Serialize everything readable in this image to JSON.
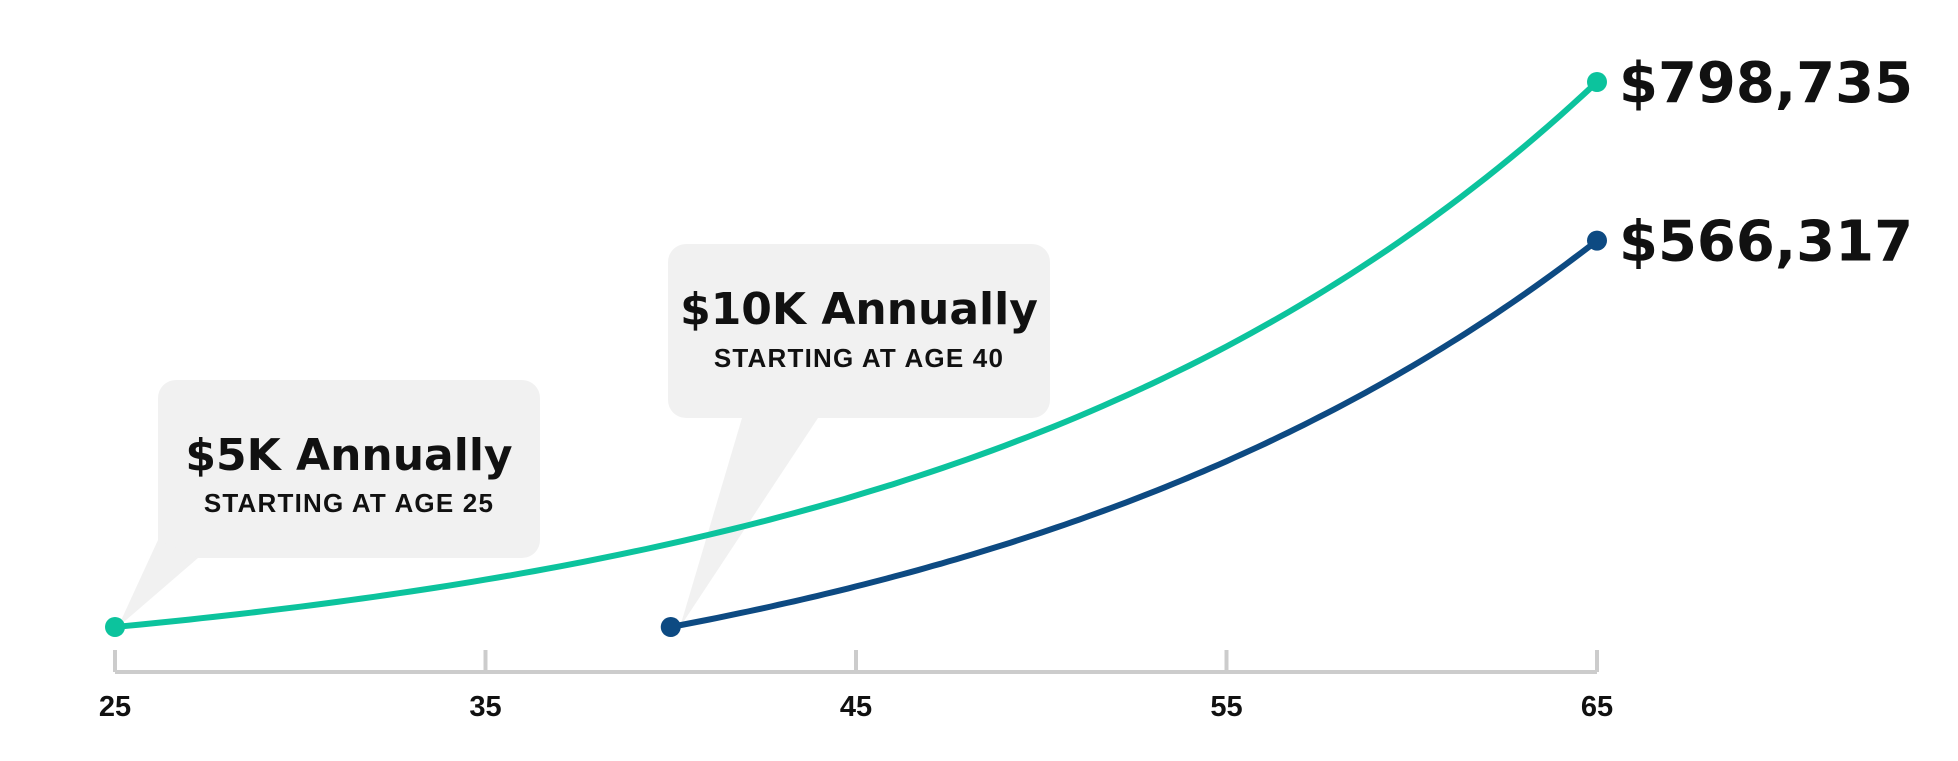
{
  "chart_data": {
    "type": "line",
    "xlabel": "",
    "ylabel": "",
    "x_ticks": [
      25,
      35,
      45,
      55,
      65
    ],
    "xlim": [
      25,
      65
    ],
    "ylim": [
      0,
      798735
    ],
    "grid": false,
    "series": [
      {
        "key": "early",
        "color": "#0cc39d",
        "start_age": 25,
        "end_age": 65,
        "annual_contribution": 5000,
        "end_value": 798735,
        "end_label": "$798,735",
        "callout_title": "$5K Annually",
        "callout_subtitle": "STARTING AT AGE 25"
      },
      {
        "key": "late",
        "color": "#0d4a82",
        "start_age": 40,
        "end_age": 65,
        "annual_contribution": 10000,
        "end_value": 566317,
        "end_label": "$566,317",
        "callout_title": "$10K Annually",
        "callout_subtitle": "STARTING AT AGE 40"
      }
    ]
  },
  "colors": {
    "axis": "#cccccc",
    "callout_bg": "#f1f1f1"
  }
}
